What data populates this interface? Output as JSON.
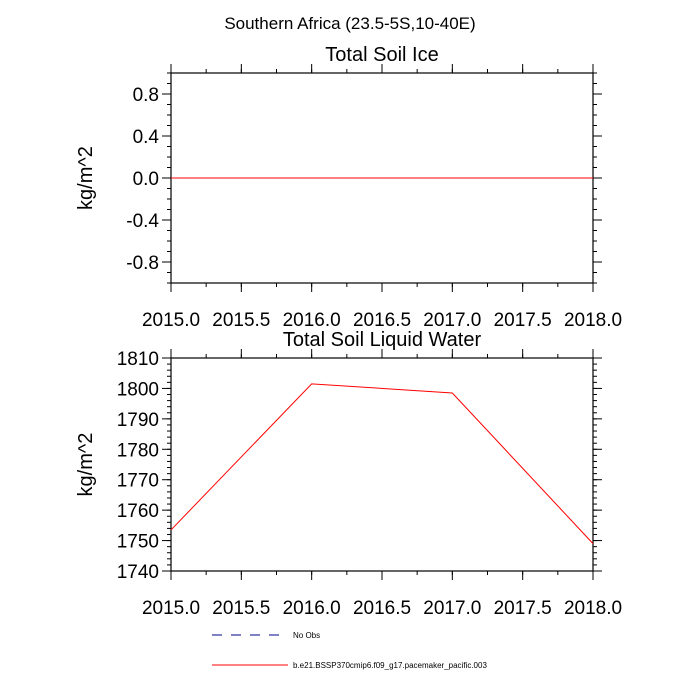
{
  "figure": {
    "suptitle": "Southern Africa (23.5-5S,10-40E)"
  },
  "chart_data": [
    {
      "type": "line",
      "title": "Total Soil Ice",
      "xlabel": "",
      "ylabel": "kg/m^2",
      "xlim": [
        2015.0,
        2018.0
      ],
      "ylim": [
        -1.0,
        1.0
      ],
      "xticks": [
        2015.0,
        2015.5,
        2016.0,
        2016.5,
        2017.0,
        2017.5,
        2018.0
      ],
      "xtick_labels": [
        "2015.0",
        "2015.5",
        "2016.0",
        "2016.5",
        "2017.0",
        "2017.5",
        "2018.0"
      ],
      "yticks": [
        -0.8,
        -0.4,
        0.0,
        0.4,
        0.8
      ],
      "ytick_labels": [
        "-0.8",
        "-0.4",
        "0.0",
        "0.4",
        "0.8"
      ],
      "yminor": 0.1,
      "xminor": 0.25,
      "series": [
        {
          "name": "b.e21.BSSP370cmip6.f09_g17.pacemaker_pacific.003",
          "color": "#ff0000",
          "x": [
            2015.0,
            2016.0,
            2017.0,
            2018.0
          ],
          "y": [
            0.0,
            0.0,
            0.0,
            0.0
          ]
        }
      ]
    },
    {
      "type": "line",
      "title": "Total Soil Liquid Water",
      "xlabel": "",
      "ylabel": "kg/m^2",
      "xlim": [
        2015.0,
        2018.0
      ],
      "ylim": [
        1740,
        1810
      ],
      "xticks": [
        2015.0,
        2015.5,
        2016.0,
        2016.5,
        2017.0,
        2017.5,
        2018.0
      ],
      "xtick_labels": [
        "2015.0",
        "2015.5",
        "2016.0",
        "2016.5",
        "2017.0",
        "2017.5",
        "2018.0"
      ],
      "yticks": [
        1740,
        1750,
        1760,
        1770,
        1780,
        1790,
        1800,
        1810
      ],
      "ytick_labels": [
        "1740",
        "1750",
        "1760",
        "1770",
        "1780",
        "1790",
        "1800",
        "1810"
      ],
      "yminor": 2,
      "xminor": 0.25,
      "series": [
        {
          "name": "b.e21.BSSP370cmip6.f09_g17.pacemaker_pacific.003",
          "color": "#ff0000",
          "x": [
            2015.0,
            2016.0,
            2017.0,
            2018.0
          ],
          "y": [
            1753.5,
            1801.5,
            1798.5,
            1749.0
          ]
        }
      ]
    }
  ],
  "legend": {
    "placement": "bottom-center",
    "items": [
      {
        "label": "No Obs",
        "color": "#00008b",
        "style": "dashed"
      },
      {
        "label": "b.e21.BSSP370cmip6.f09_g17.pacemaker_pacific.003",
        "color": "#ff0000",
        "style": "solid"
      }
    ]
  }
}
